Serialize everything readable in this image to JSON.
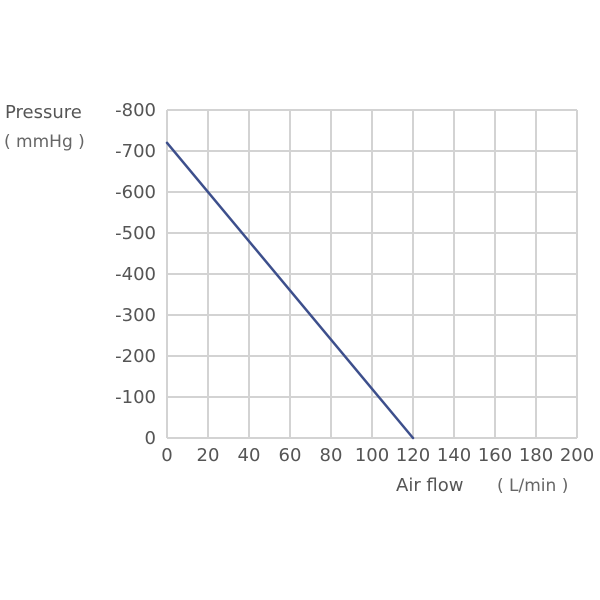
{
  "chart_data": {
    "type": "line",
    "ylabel": "Pressure",
    "yunit": "( mmHg )",
    "xlabel": "Air flow",
    "xunit": "( L/min )",
    "x_ticks": [
      "0",
      "20",
      "40",
      "60",
      "80",
      "100",
      "120",
      "140",
      "160",
      "180",
      "200"
    ],
    "y_ticks": [
      "0",
      "-100",
      "-200",
      "-300",
      "-400",
      "-500",
      "-600",
      "-700",
      "-800"
    ],
    "xlim": [
      0,
      200
    ],
    "ylim": [
      0,
      -800
    ],
    "grid": true,
    "line_color": "#3d4f8c",
    "grid_color": "#d3d3d3",
    "series": [
      {
        "x": [
          0,
          120
        ],
        "y": [
          -720,
          0
        ]
      }
    ]
  }
}
